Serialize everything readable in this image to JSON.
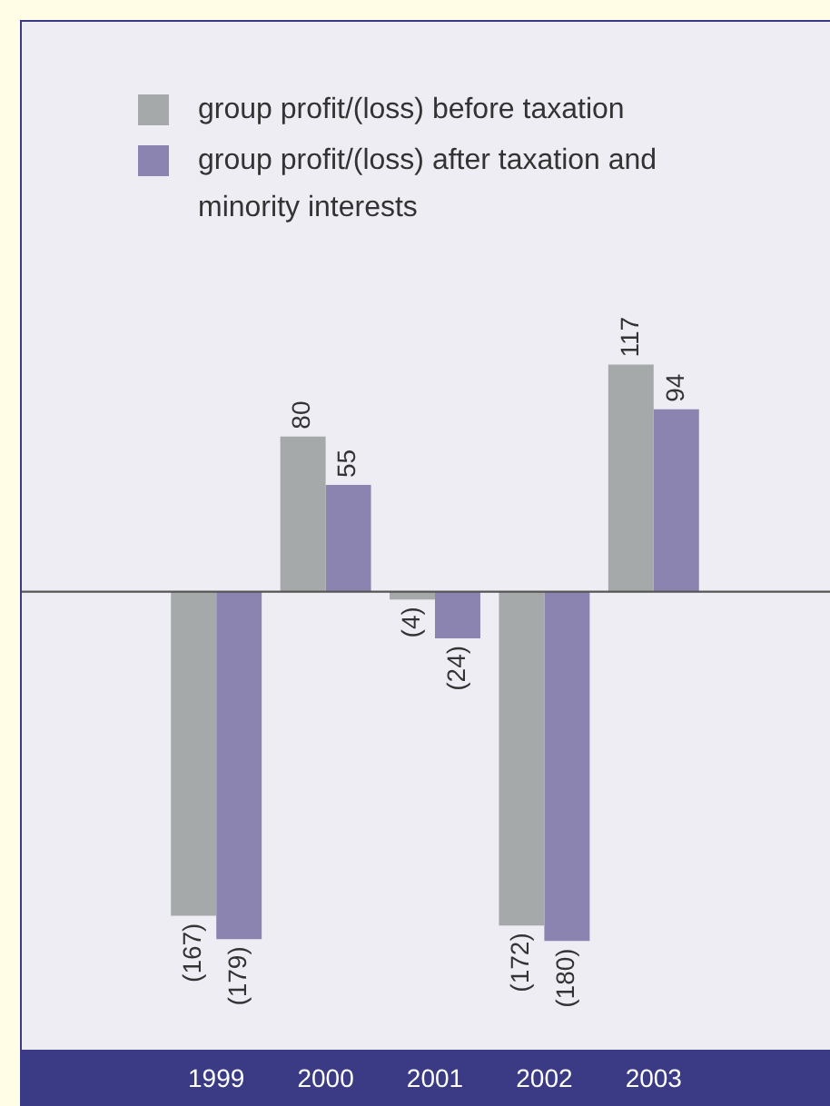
{
  "chart_data": {
    "type": "bar",
    "categories": [
      "1999",
      "2000",
      "2001",
      "2002",
      "2003"
    ],
    "series": [
      {
        "name": "group profit/(loss) before taxation",
        "color": "#a6a9a9",
        "values": [
          -167,
          80,
          -4,
          -172,
          117
        ],
        "value_labels": [
          "(167)",
          "80",
          "(4)",
          "(172)",
          "117"
        ]
      },
      {
        "name": "group profit/(loss) after taxation and minority interests",
        "color": "#8b84b1",
        "values": [
          -179,
          55,
          -24,
          -180,
          94
        ],
        "value_labels": [
          "(179)",
          "55",
          "(24)",
          "(180)",
          "94"
        ]
      }
    ],
    "legend": "top"
  }
}
